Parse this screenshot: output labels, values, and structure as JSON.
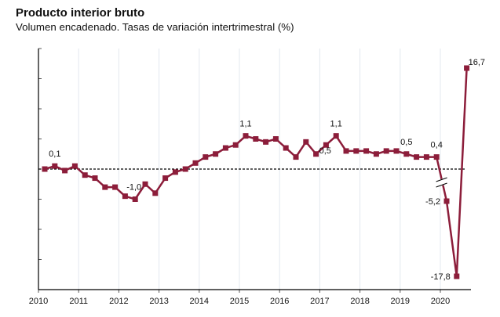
{
  "chart_data": {
    "type": "line",
    "title": "Producto interior bruto",
    "subtitle": "Volumen encadenado. Tasas de variación intertrimestral (%)",
    "xlabel": "",
    "ylabel": "",
    "x_tick_labels": [
      "2010",
      "2011",
      "2012",
      "2013",
      "2014",
      "2015",
      "2016",
      "2017",
      "2018",
      "2019",
      "2020"
    ],
    "ylim": [
      -4,
      4
    ],
    "y_tick_values": [
      -4,
      -3,
      -2,
      -1,
      0,
      1,
      2,
      3,
      4
    ],
    "y_tick_labels_shown": false,
    "grid": "vertical",
    "reference_line": {
      "value": 0,
      "style": "dashed"
    },
    "axis_break": "after 2019 Q4 (values beyond axis range drawn with break)",
    "series": [
      {
        "name": "PIB",
        "color": "#8c1d3a",
        "x": [
          "2010T1",
          "2010T2",
          "2010T3",
          "2010T4",
          "2011T1",
          "2011T2",
          "2011T3",
          "2011T4",
          "2012T1",
          "2012T2",
          "2012T3",
          "2012T4",
          "2013T1",
          "2013T2",
          "2013T3",
          "2013T4",
          "2014T1",
          "2014T2",
          "2014T3",
          "2014T4",
          "2015T1",
          "2015T2",
          "2015T3",
          "2015T4",
          "2016T1",
          "2016T2",
          "2016T3",
          "2016T4",
          "2017T1",
          "2017T2",
          "2017T3",
          "2017T4",
          "2018T1",
          "2018T2",
          "2018T3",
          "2018T4",
          "2019T1",
          "2019T2",
          "2019T3",
          "2019T4",
          "2020T1",
          "2020T2",
          "2020T3"
        ],
        "values": [
          0.0,
          0.1,
          -0.05,
          0.1,
          -0.2,
          -0.3,
          -0.6,
          -0.6,
          -0.9,
          -1.0,
          -0.5,
          -0.8,
          -0.3,
          -0.1,
          0.0,
          0.2,
          0.4,
          0.5,
          0.7,
          0.8,
          1.1,
          1.0,
          0.9,
          1.0,
          0.7,
          0.4,
          0.9,
          0.5,
          0.8,
          1.1,
          0.6,
          0.6,
          0.6,
          0.5,
          0.6,
          0.6,
          0.5,
          0.4,
          0.4,
          0.4,
          -5.2,
          -17.8,
          16.7
        ]
      }
    ],
    "annotations": [
      {
        "index": 1,
        "text": "0,1",
        "position": "above"
      },
      {
        "index": 9,
        "text": "-1,0",
        "position": "left"
      },
      {
        "index": 20,
        "text": "1,1",
        "position": "above"
      },
      {
        "index": 27,
        "text": "0,5",
        "position": "right"
      },
      {
        "index": 29,
        "text": "1,1",
        "position": "above"
      },
      {
        "index": 36,
        "text": "0,5",
        "position": "above"
      },
      {
        "index": 39,
        "text": "0,4",
        "position": "above"
      },
      {
        "index": 40,
        "text": "-5,2",
        "position": "left"
      },
      {
        "index": 41,
        "text": "-17,8",
        "position": "left"
      },
      {
        "index": 42,
        "text": "16,7",
        "position": "right"
      }
    ]
  }
}
